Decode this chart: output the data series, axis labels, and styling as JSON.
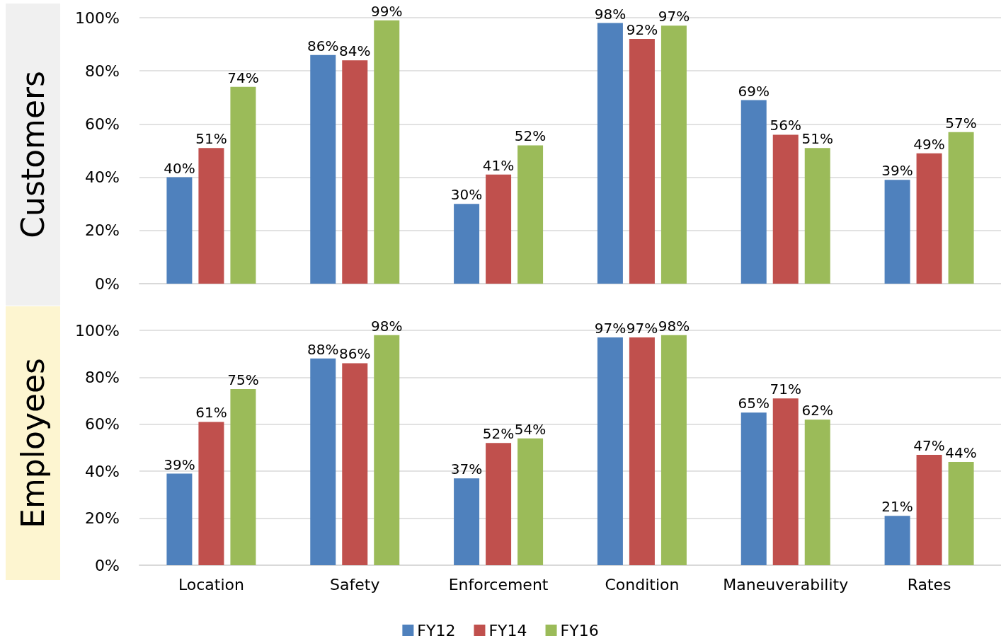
{
  "chart_data": [
    {
      "type": "bar",
      "ylabel": "Customers",
      "categories": [
        null,
        null,
        null,
        null,
        null,
        null
      ],
      "series": [
        {
          "color": "#4f81bd",
          "values": [
            40,
            86,
            30,
            98,
            69,
            39
          ],
          "value_labels": [
            "40%",
            "86%",
            "30%",
            "98%",
            "69%",
            "39%"
          ]
        },
        {
          "color": "#c0504d",
          "values": [
            51,
            84,
            41,
            92,
            56,
            49
          ],
          "value_labels": [
            "51%",
            "84%",
            "41%",
            "92%",
            "56%",
            "49%"
          ]
        },
        {
          "color": "#9bbb59",
          "values": [
            74,
            99,
            52,
            97,
            51,
            57
          ],
          "value_labels": [
            "74%",
            "99%",
            "52%",
            "97%",
            "51%",
            "57%"
          ]
        }
      ],
      "ylim": [
        0,
        100
      ],
      "yticks": [
        {
          "value": 0,
          "label": "0%"
        },
        {
          "value": 20,
          "label": "20%"
        },
        {
          "value": 40,
          "label": "40%"
        },
        {
          "value": 60,
          "label": "60%"
        },
        {
          "value": 80,
          "label": "80%"
        },
        {
          "value": 100,
          "label": "100%"
        }
      ],
      "grid": "y",
      "legend": false,
      "tick_labels": "y"
    },
    {
      "type": "bar",
      "ylabel": "Employees",
      "categories": [
        "Location",
        "Safety",
        "Enforcement",
        "Condition",
        "Maneuverability",
        "Rates"
      ],
      "series": [
        {
          "name": "FY12",
          "color": "#4f81bd",
          "values": [
            39,
            88,
            37,
            97,
            65,
            21
          ],
          "value_labels": [
            "39%",
            "88%",
            "37%",
            "97%",
            "65%",
            "21%"
          ]
        },
        {
          "name": "FY14",
          "color": "#c0504d",
          "values": [
            61,
            86,
            52,
            97,
            71,
            47
          ],
          "value_labels": [
            "61%",
            "86%",
            "52%",
            "97%",
            "71%",
            "47%"
          ]
        },
        {
          "name": "FY16",
          "color": "#9bbb59",
          "values": [
            75,
            98,
            54,
            98,
            62,
            44
          ],
          "value_labels": [
            "75%",
            "98%",
            "54%",
            "98%",
            "62%",
            "44%"
          ]
        }
      ],
      "ylim": [
        0,
        100
      ],
      "yticks": [
        {
          "value": 0,
          "label": "0%"
        },
        {
          "value": 20,
          "label": "20%"
        },
        {
          "value": 40,
          "label": "40%"
        },
        {
          "value": 60,
          "label": "60%"
        },
        {
          "value": 80,
          "label": "80%"
        },
        {
          "value": 100,
          "label": "100%"
        }
      ],
      "grid": "y",
      "legend": "bottom"
    }
  ]
}
